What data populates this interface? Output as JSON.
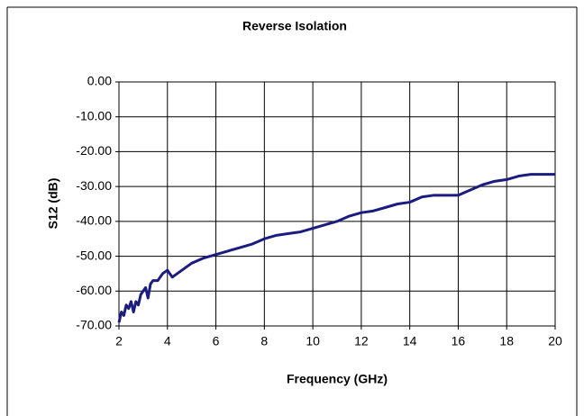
{
  "chart_data": {
    "type": "line",
    "title": "Reverse Isolation",
    "x_label": "Frequency (GHz)",
    "y_label": "S12 (dB)",
    "x": [
      2,
      2.1,
      2.2,
      2.3,
      2.4,
      2.5,
      2.6,
      2.7,
      2.8,
      2.9,
      3.0,
      3.1,
      3.2,
      3.3,
      3.4,
      3.6,
      3.8,
      4.0,
      4.2,
      4.4,
      4.6,
      5.0,
      5.5,
      6,
      6.5,
      7,
      7.5,
      8,
      8.5,
      9,
      9.5,
      10,
      10.5,
      11,
      11.5,
      12,
      12.5,
      13,
      13.5,
      14,
      14.5,
      15,
      15.5,
      16,
      16.5,
      17,
      17.5,
      18,
      18.5,
      19,
      19.5,
      20
    ],
    "series": [
      {
        "name": "S12",
        "color": "#1c1c80",
        "values": [
          -69,
          -66,
          -67,
          -64,
          -65,
          -63,
          -66,
          -63,
          -64,
          -61,
          -60,
          -59,
          -62,
          -58,
          -57,
          -57,
          -55,
          -54,
          -56,
          -55,
          -54,
          -52,
          -50.5,
          -49.5,
          -48.5,
          -47.5,
          -46.5,
          -45,
          -44,
          -43.5,
          -43,
          -42,
          -41,
          -40,
          -38.5,
          -37.5,
          -37,
          -36,
          -35,
          -34.5,
          -33,
          -32.5,
          -32.5,
          -32.5,
          -31,
          -29.5,
          -28.5,
          -28,
          -27,
          -26.5,
          -26.5,
          -26.5
        ]
      }
    ],
    "xlim": [
      2,
      20
    ],
    "xticks": [
      2,
      4,
      6,
      8,
      10,
      12,
      14,
      16,
      18,
      20
    ],
    "ylim": [
      -70,
      0
    ],
    "yticks": [
      {
        "value": 0,
        "label": "0.00"
      },
      {
        "value": -10,
        "label": "-10.00"
      },
      {
        "value": -20,
        "label": "-20.00"
      },
      {
        "value": -30,
        "label": "-30.00"
      },
      {
        "value": -40,
        "label": "-40.00"
      },
      {
        "value": -50,
        "label": "-50.00"
      },
      {
        "value": -60,
        "label": "-60.00"
      },
      {
        "value": -70,
        "label": "-70.00"
      }
    ],
    "grid": true
  }
}
